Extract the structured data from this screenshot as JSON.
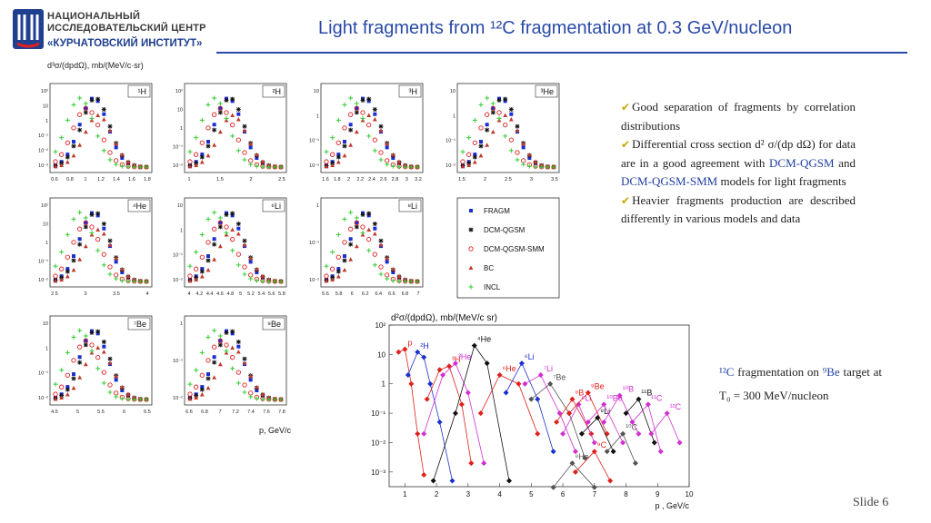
{
  "header": {
    "org_line1": "НАЦИОНАЛЬНЫЙ",
    "org_line2": "ИССЛЕДОВАТЕЛЬСКИЙ ЦЕНТР",
    "org_line3": "«КУРЧАТОВСКИЙ ИНСТИТУТ»",
    "title": "Light fragments from ¹²C fragmentation at 0.3 GeV/nucleon",
    "accent": "#2a4aa8"
  },
  "left_ylabel": "d³σ/(dpdΩ), mb/(MeV/c·sr)",
  "panels": [
    {
      "label": "¹H",
      "xticks": [
        "0.6",
        "0.8",
        "1",
        "1.2",
        "1.4",
        "1.6",
        "1.8"
      ],
      "yticks": [
        "10²",
        "10",
        "1",
        "10⁻¹",
        "10⁻²",
        "10⁻³"
      ]
    },
    {
      "label": "²H",
      "xticks": [
        "1",
        "1.5",
        "2",
        "2.5"
      ],
      "yticks": [
        "10²",
        "10",
        "1",
        "10⁻¹",
        "10⁻²"
      ]
    },
    {
      "label": "³H",
      "xticks": [
        "1.6",
        "1.8",
        "2",
        "2.2",
        "2.4",
        "2.6",
        "2.8",
        "3",
        "3.2"
      ],
      "yticks": [
        "10",
        "1",
        "10⁻¹",
        "10⁻²"
      ]
    },
    {
      "label": "³He",
      "xticks": [
        "1.5",
        "2",
        "2.5",
        "3",
        "3.5"
      ],
      "yticks": [
        "10",
        "1",
        "10⁻¹",
        "10⁻²"
      ]
    },
    {
      "label": "⁴He",
      "xticks": [
        "2.5",
        "3",
        "3.5",
        "4"
      ],
      "yticks": [
        "10²",
        "10",
        "1",
        "10⁻¹",
        "10⁻²"
      ]
    },
    {
      "label": "⁶Li",
      "xticks": [
        "4",
        "4.2",
        "4.4",
        "4.6",
        "4.8",
        "5",
        "5.2",
        "5.4",
        "5.6",
        "5.8"
      ],
      "yticks": [
        "10",
        "1",
        "10⁻¹",
        "10⁻²"
      ]
    },
    {
      "label": "⁸Li",
      "xticks": [
        "5.6",
        "5.8",
        "6",
        "6.2",
        "6.4",
        "6.6",
        "6.8",
        "7"
      ],
      "yticks": [
        "1",
        "10⁻¹",
        "10⁻²"
      ]
    },
    {
      "label": "⁷Be",
      "xticks": [
        "4.5",
        "5",
        "5.5",
        "6",
        "6.5"
      ],
      "yticks": [
        "10",
        "1",
        "10⁻¹",
        "10⁻²"
      ]
    },
    {
      "label": "⁹Be",
      "xticks": [
        "6.6",
        "6.8",
        "7",
        "7.2",
        "7.4",
        "7.6",
        "7.8"
      ],
      "yticks": [
        "1",
        "10⁻¹",
        "10⁻²"
      ]
    }
  ],
  "left_xlabel": "p, GeV/c",
  "legend": [
    {
      "name": "FRAGM",
      "color": "#1a2fd0",
      "marker": "square"
    },
    {
      "name": "DCM-QGSM",
      "color": "#111111",
      "marker": "star"
    },
    {
      "name": "DCM-QGSM-SMM",
      "color": "#e02020",
      "marker": "circle"
    },
    {
      "name": "BC",
      "color": "#c0392b",
      "marker": "triangle"
    },
    {
      "name": "INCL",
      "color": "#33cc33",
      "marker": "cross"
    }
  ],
  "bullets": [
    {
      "text": "Good separation of fragments by correlation distributions"
    },
    {
      "text_a": "Differential cross section d² σ/(dp dΩ) for data are in a good agreement with ",
      "blue1": "DCM-QGSM",
      "mid": " and ",
      "blue2": "DCM-QGSM-SMM",
      "text_b": " models for light fragments"
    },
    {
      "text": "Heavier fragments production are described differently in various models and data"
    }
  ],
  "chart_data": {
    "type": "scatter",
    "title": "",
    "ylabel": "d²σ/(dpdΩ), mb/(MeV/c sr)",
    "xlabel": "p , GeV/c",
    "xlim": [
      0.5,
      10
    ],
    "ylim_log10": [
      -3.5,
      2
    ],
    "yscale": "log",
    "xticks": [
      1,
      2,
      3,
      4,
      5,
      6,
      7,
      8,
      9,
      10
    ],
    "ytick_labels": [
      "10²",
      "10",
      "1",
      "10⁻¹",
      "10⁻²",
      "10⁻³"
    ],
    "series": [
      {
        "name": "p",
        "color": "#e0201c",
        "points": [
          [
            0.8,
            12
          ],
          [
            1.0,
            15
          ],
          [
            1.2,
            1
          ],
          [
            1.4,
            0.02
          ],
          [
            1.6,
            0.0008
          ]
        ]
      },
      {
        "name": "²H",
        "color": "#1a2fd0",
        "points": [
          [
            1.1,
            2
          ],
          [
            1.4,
            12
          ],
          [
            1.6,
            8
          ],
          [
            1.8,
            1
          ],
          [
            2.1,
            0.05
          ],
          [
            2.5,
            0.0005
          ]
        ]
      },
      {
        "name": "³H",
        "color": "#e0201c",
        "points": [
          [
            1.7,
            0.3
          ],
          [
            2.1,
            3
          ],
          [
            2.4,
            4
          ],
          [
            2.8,
            0.2
          ],
          [
            3.1,
            0.002
          ]
        ]
      },
      {
        "name": "³He",
        "color": "#d030d0",
        "points": [
          [
            1.6,
            0.02
          ],
          [
            2.2,
            2
          ],
          [
            2.6,
            5
          ],
          [
            3.0,
            0.5
          ],
          [
            3.5,
            0.002
          ]
        ]
      },
      {
        "name": "⁴He",
        "color": "#111111",
        "points": [
          [
            1.9,
            0.0005
          ],
          [
            2.6,
            0.1
          ],
          [
            3.2,
            20
          ],
          [
            3.6,
            5
          ],
          [
            4.3,
            0.0005
          ]
        ]
      },
      {
        "name": "⁶He",
        "color": "#e0201c",
        "points": [
          [
            3.4,
            0.1
          ],
          [
            4.0,
            2
          ],
          [
            4.6,
            1
          ],
          [
            5.2,
            0.02
          ]
        ]
      },
      {
        "name": "⁶Li",
        "color": "#1a2fd0",
        "points": [
          [
            4.2,
            0.5
          ],
          [
            4.7,
            5
          ],
          [
            5.2,
            0.3
          ],
          [
            5.7,
            0.005
          ]
        ]
      },
      {
        "name": "⁷Li",
        "color": "#d030d0",
        "points": [
          [
            4.8,
            1
          ],
          [
            5.3,
            2
          ],
          [
            5.9,
            0.1
          ],
          [
            6.4,
            0.005
          ]
        ]
      },
      {
        "name": "⁷Be",
        "color": "#555555",
        "points": [
          [
            5.0,
            0.3
          ],
          [
            5.6,
            1
          ],
          [
            6.2,
            0.1
          ],
          [
            6.7,
            0.003
          ]
        ]
      },
      {
        "name": "⁸He",
        "color": "#555555",
        "points": [
          [
            5.7,
            0.0003
          ],
          [
            6.3,
            0.002
          ],
          [
            7.0,
            0.0003
          ]
        ]
      },
      {
        "name": "⁸B",
        "color": "#e0201c",
        "points": [
          [
            5.8,
            0.05
          ],
          [
            6.3,
            0.3
          ],
          [
            6.9,
            0.02
          ]
        ]
      },
      {
        "name": "⁸Li",
        "color": "#d030d0",
        "points": [
          [
            6.0,
            0.02
          ],
          [
            6.5,
            0.2
          ],
          [
            7.0,
            0.01
          ]
        ]
      },
      {
        "name": "⁹Be",
        "color": "#e0201c",
        "points": [
          [
            6.2,
            0.1
          ],
          [
            6.8,
            0.5
          ],
          [
            7.4,
            0.02
          ]
        ]
      },
      {
        "name": "⁹Li",
        "color": "#111111",
        "points": [
          [
            6.6,
            0.02
          ],
          [
            7.1,
            0.07
          ],
          [
            7.6,
            0.005
          ]
        ]
      },
      {
        "name": "⁹C",
        "color": "#e0201c",
        "points": [
          [
            6.4,
            0.001
          ],
          [
            7.0,
            0.005
          ],
          [
            7.5,
            0.0005
          ]
        ]
      },
      {
        "name": "¹⁰Be",
        "color": "#d030d0",
        "points": [
          [
            6.8,
            0.05
          ],
          [
            7.3,
            0.2
          ],
          [
            7.9,
            0.01
          ]
        ]
      },
      {
        "name": "¹⁰B",
        "color": "#d030d0",
        "points": [
          [
            7.3,
            0.05
          ],
          [
            7.8,
            0.4
          ],
          [
            8.4,
            0.02
          ]
        ]
      },
      {
        "name": "¹⁰C",
        "color": "#555555",
        "points": [
          [
            7.4,
            0.005
          ],
          [
            7.9,
            0.02
          ],
          [
            8.3,
            0.002
          ]
        ]
      },
      {
        "name": "¹¹B",
        "color": "#111111",
        "points": [
          [
            8.0,
            0.1
          ],
          [
            8.4,
            0.3
          ],
          [
            8.9,
            0.01
          ]
        ]
      },
      {
        "name": "¹¹C",
        "color": "#d030d0",
        "points": [
          [
            8.2,
            0.05
          ],
          [
            8.7,
            0.2
          ],
          [
            9.1,
            0.005
          ]
        ]
      },
      {
        "name": "¹²C",
        "color": "#d030d0",
        "points": [
          [
            8.8,
            0.02
          ],
          [
            9.3,
            0.1
          ],
          [
            9.7,
            0.01
          ]
        ]
      }
    ]
  },
  "side_text": {
    "a": "¹²C",
    "b": " fragmentation on ",
    "c": "⁹Be",
    "d": " target at T₀ = 300 MeV/nucleon"
  },
  "slide_label": "Slide 6"
}
